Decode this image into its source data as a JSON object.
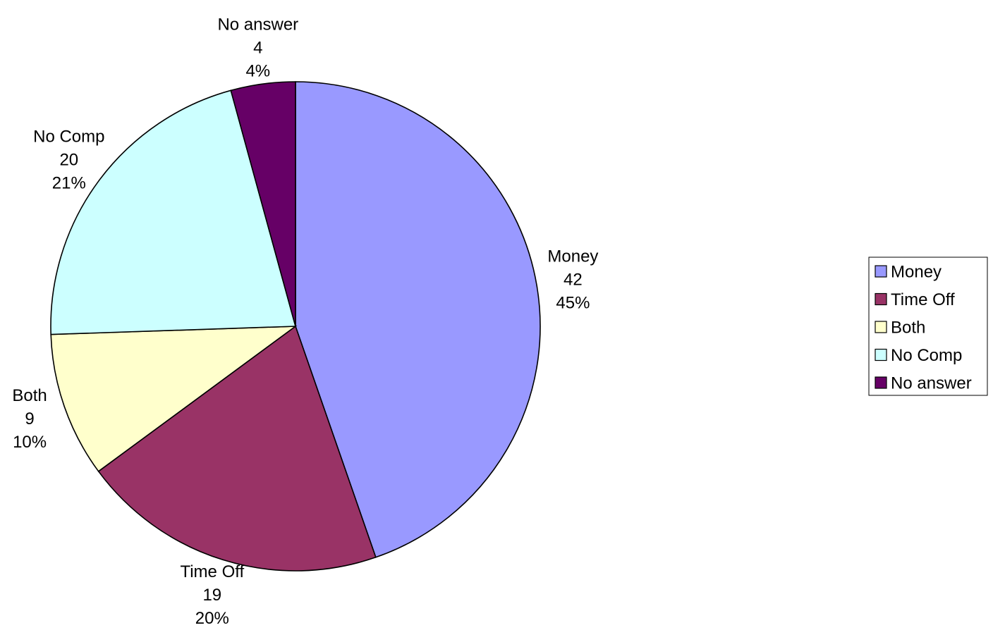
{
  "chart_data": {
    "type": "pie",
    "title": "",
    "slices": [
      {
        "label": "Money",
        "value": 42,
        "percent": "45%",
        "color": "#9999FF"
      },
      {
        "label": "Time Off",
        "value": 19,
        "percent": "20%",
        "color": "#993366"
      },
      {
        "label": "Both",
        "value": 9,
        "percent": "10%",
        "color": "#FFFFCC"
      },
      {
        "label": "No Comp",
        "value": 20,
        "percent": "21%",
        "color": "#CCFFFF"
      },
      {
        "label": "No answer",
        "value": 4,
        "percent": "4%",
        "color": "#660066"
      }
    ],
    "start_angle_deg": 0,
    "direction": "clockwise",
    "legend": {
      "placement": "right",
      "entries": [
        "Money",
        "Time Off",
        "Both",
        "No Comp",
        "No answer"
      ]
    }
  }
}
